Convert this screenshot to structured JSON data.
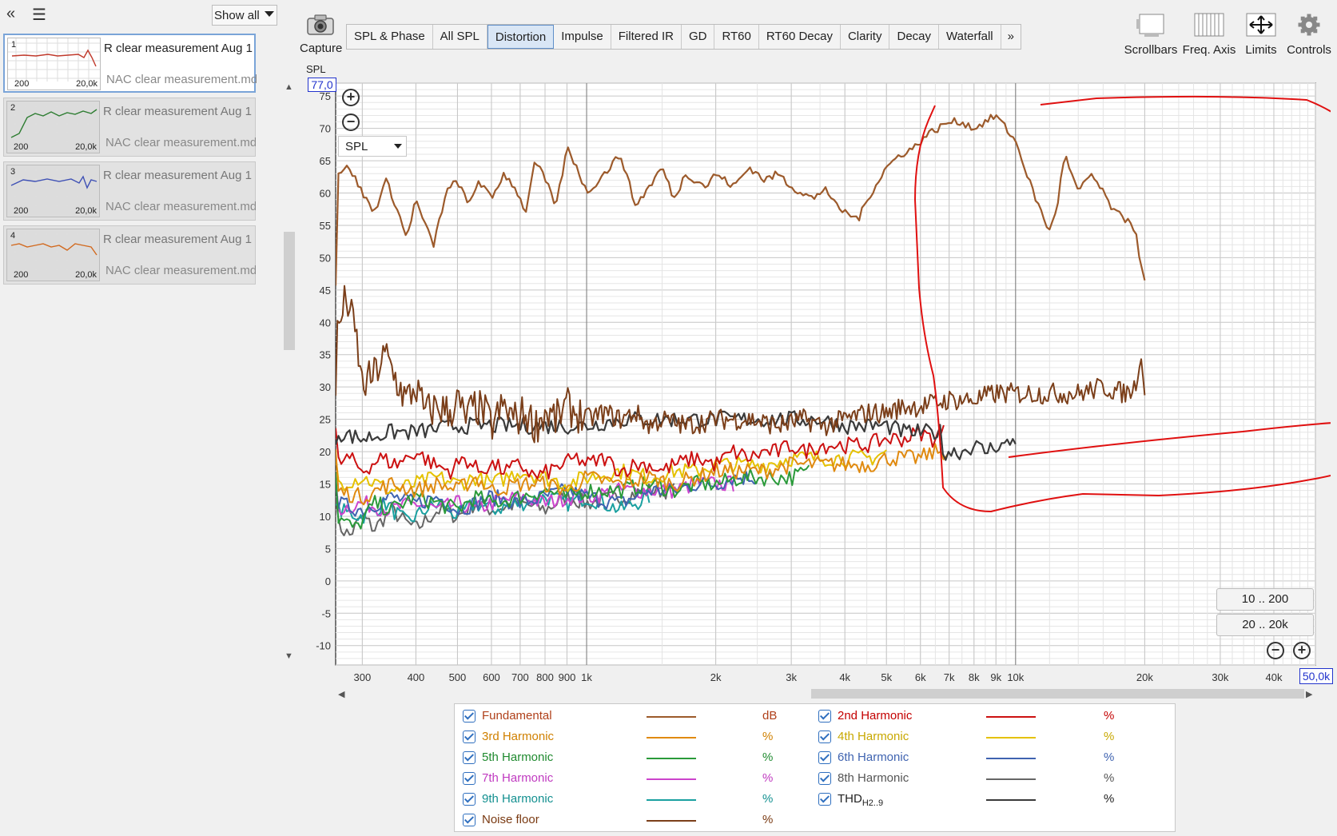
{
  "left": {
    "collapse_icon": "double-chevron-left-icon",
    "menu_icon": "hamburger-menu-icon",
    "show_all": "Show all",
    "measurements": [
      {
        "num": "1",
        "name": "R clear measurement Aug 1",
        "file": "NAC clear measurement.mdat",
        "lo": "200",
        "hi": "20,0k",
        "color": "#c0392b",
        "selected": true
      },
      {
        "num": "2",
        "name": "R clear measurement Aug 1",
        "file": "NAC clear measurement.mdat",
        "lo": "200",
        "hi": "20,0k",
        "color": "#2e7d32",
        "selected": false
      },
      {
        "num": "3",
        "name": "R clear measurement Aug 1",
        "file": "NAC clear measurement.mdat",
        "lo": "200",
        "hi": "20,0k",
        "color": "#3f51b5",
        "selected": false
      },
      {
        "num": "4",
        "name": "R clear measurement Aug 1",
        "file": "NAC clear measurement.mdat",
        "lo": "200",
        "hi": "20,0k",
        "color": "#d2691e",
        "selected": false
      }
    ]
  },
  "toolbar": {
    "capture": "Capture",
    "tabs": [
      "SPL & Phase",
      "All SPL",
      "Distortion",
      "Impulse",
      "Filtered IR",
      "GD",
      "RT60",
      "RT60 Decay",
      "Clarity",
      "Decay",
      "Waterfall"
    ],
    "active_tab": "Distortion",
    "more_icon": "double-chevron-right-icon",
    "right": [
      {
        "label": "Scrollbars",
        "icon": "scrollbars-icon"
      },
      {
        "label": "Freq. Axis",
        "icon": "freq-axis-icon"
      },
      {
        "label": "Limits",
        "icon": "limits-icon"
      },
      {
        "label": "Controls",
        "icon": "gear-icon"
      }
    ]
  },
  "plot": {
    "ylabel": "SPL",
    "ytop_box": "77,0",
    "xright_box": "50,0k",
    "select": "SPL",
    "range_buttons": [
      "10 .. 200",
      "20 .. 20k"
    ]
  },
  "chart_data": {
    "type": "line",
    "xscale": "log",
    "xlim": [
      260,
      50000
    ],
    "ylim": [
      -13,
      77
    ],
    "yticks": [
      75,
      70,
      65,
      60,
      55,
      50,
      45,
      40,
      35,
      30,
      25,
      20,
      15,
      10,
      5,
      0,
      -5,
      -10
    ],
    "ytick_labels": [
      "75",
      "70",
      "65",
      "60",
      "55",
      "50",
      "45",
      "40",
      "35",
      "30",
      "25",
      "20",
      "15",
      "10",
      "5",
      "0",
      "-5",
      "-10"
    ],
    "xticks": [
      300,
      400,
      500,
      600,
      700,
      800,
      900,
      1000,
      2000,
      3000,
      4000,
      5000,
      6000,
      7000,
      8000,
      9000,
      10000,
      20000,
      30000,
      40000
    ],
    "xtick_labels": [
      "300",
      "400",
      "500",
      "600",
      "700",
      "800",
      "900",
      "1k",
      "2k",
      "3k",
      "4k",
      "5k",
      "6k",
      "7k",
      "8k",
      "9k",
      "10k",
      "20k",
      "30k",
      "40k"
    ],
    "series": [
      {
        "name": "Fundamental",
        "unit": "dB",
        "color": "#9c5a2b",
        "width": 2.2,
        "x": [
          260,
          280,
          300,
          320,
          340,
          360,
          380,
          400,
          420,
          440,
          470,
          500,
          530,
          560,
          600,
          640,
          680,
          720,
          760,
          800,
          850,
          900,
          950,
          1000,
          1100,
          1200,
          1300,
          1400,
          1500,
          1600,
          1700,
          1800,
          1900,
          2000,
          2200,
          2400,
          2600,
          2800,
          3000,
          3200,
          3400,
          3600,
          3800,
          4000,
          4300,
          4600,
          5000,
          5400,
          5800,
          6200,
          6600,
          7000,
          7500,
          8000,
          8500,
          9000,
          9500,
          10000,
          10500,
          11000,
          12000,
          12500,
          13000,
          14000,
          15000,
          16000,
          17000,
          18000,
          18500,
          19000,
          19500,
          20000
        ],
        "y": [
          63,
          64,
          60,
          57,
          62,
          58,
          53,
          59,
          55,
          52,
          60,
          62,
          58,
          62,
          59,
          63,
          61,
          57,
          65,
          62,
          58,
          67,
          64,
          60,
          63,
          66,
          58,
          61,
          64,
          59,
          63,
          62,
          61,
          63,
          61,
          64,
          62,
          63,
          61,
          60,
          59,
          61,
          58,
          57,
          56,
          60,
          64,
          66,
          67,
          69,
          70,
          71,
          71,
          70,
          71,
          72,
          70,
          68,
          64,
          60,
          54,
          58,
          66,
          60,
          63,
          60,
          57,
          56,
          56,
          54,
          50,
          46
        ]
      },
      {
        "name": "Noise floor",
        "unit": "%",
        "color": "#7b3f1a",
        "width": 2,
        "x": [
          260,
          275,
          290,
          300,
          320,
          340,
          360,
          380,
          400,
          420,
          450,
          480,
          500,
          520,
          550,
          580,
          600,
          640,
          680,
          720,
          760,
          800,
          850,
          900,
          1000,
          1100,
          1200,
          1300,
          1400,
          1500,
          1700,
          2000,
          2400,
          2800,
          3200,
          3600,
          4000,
          4500,
          5000,
          5500,
          6000,
          7000,
          8000,
          9000,
          10000,
          11000,
          12000,
          14000,
          16000,
          18000,
          19000,
          19500,
          20000
        ],
        "y": [
          37,
          44,
          38,
          30,
          32,
          35,
          31,
          28,
          30,
          26,
          27,
          26,
          28,
          25,
          27,
          26,
          24,
          27,
          25,
          26,
          24,
          26,
          25,
          27,
          25,
          26,
          25,
          26,
          24,
          25,
          24,
          25,
          25,
          24,
          25,
          24,
          25,
          26,
          26,
          27,
          27,
          28,
          28,
          29,
          29,
          29,
          29,
          29,
          30,
          29,
          30,
          35,
          30
        ],
        "jitter": 3
      },
      {
        "name": "2nd Harmonic",
        "unit": "%",
        "color": "#cc1111",
        "width": 2,
        "x": [
          260,
          280,
          300,
          330,
          360,
          400,
          440,
          480,
          520,
          560,
          600,
          650,
          700,
          760,
          820,
          880,
          950,
          1000,
          1100,
          1200,
          1300,
          1400,
          1500,
          1600,
          1800,
          2000,
          2200,
          2400,
          2600,
          2800,
          3000,
          3200,
          3500,
          3800,
          4100,
          4500,
          5000,
          5500,
          6000,
          6400,
          6800
        ],
        "y": [
          18,
          19,
          17,
          19,
          18,
          20,
          18,
          17,
          19,
          17,
          18,
          17,
          18,
          16,
          17,
          18,
          19,
          18,
          19,
          17,
          18,
          18,
          17,
          18,
          19,
          18,
          20,
          19,
          20,
          20,
          21,
          20,
          21,
          21,
          21,
          21,
          22,
          22,
          23,
          22,
          23
        ]
      },
      {
        "name": "3rd Harmonic",
        "unit": "%",
        "color": "#e08a10",
        "width": 2,
        "x": [
          260,
          300,
          350,
          400,
          450,
          500,
          550,
          600,
          700,
          800,
          900,
          1000,
          1200,
          1400,
          1600,
          1800,
          2000,
          2300,
          2600,
          3000,
          3400,
          3800,
          4200,
          4600,
          5000,
          5500,
          6000,
          6500,
          7000
        ],
        "y": [
          14,
          13,
          15,
          14,
          15,
          14,
          16,
          14,
          15,
          15,
          14,
          16,
          15,
          16,
          15,
          16,
          17,
          17,
          17,
          18,
          18,
          18,
          18,
          18,
          19,
          19,
          19,
          20,
          20
        ]
      },
      {
        "name": "4th Harmonic",
        "unit": "%",
        "color": "#e5c100",
        "width": 2,
        "x": [
          260,
          300,
          350,
          400,
          450,
          500,
          550,
          600,
          700,
          800,
          900,
          1000,
          1200,
          1400,
          1600,
          1800,
          2000,
          2300,
          2600,
          3000,
          3400,
          3800,
          4200,
          4600,
          5000
        ],
        "y": [
          15,
          16,
          14,
          15,
          16,
          15,
          16,
          15,
          17,
          16,
          15,
          16,
          17,
          16,
          17,
          17,
          18,
          18,
          18,
          19,
          19,
          19,
          19,
          19,
          20
        ]
      },
      {
        "name": "5th Harmonic",
        "unit": "%",
        "color": "#2a9a3a",
        "width": 2,
        "x": [
          260,
          290,
          320,
          350,
          400,
          450,
          500,
          550,
          600,
          700,
          800,
          900,
          1000,
          1200,
          1400,
          1600,
          1800,
          2000,
          2300,
          2600,
          3000,
          3300
        ],
        "y": [
          10,
          8,
          12,
          11,
          13,
          12,
          11,
          13,
          12,
          13,
          14,
          13,
          14,
          14,
          15,
          14,
          15,
          15,
          16,
          16,
          16,
          17
        ]
      },
      {
        "name": "6th Harmonic",
        "unit": "%",
        "color": "#3f63b0",
        "width": 2,
        "x": [
          260,
          300,
          350,
          400,
          450,
          500,
          550,
          600,
          700,
          800,
          900,
          1000,
          1200,
          1400,
          1600,
          1800,
          2000,
          2200,
          2500
        ],
        "y": [
          12,
          11,
          13,
          12,
          13,
          11,
          12,
          13,
          12,
          13,
          14,
          13,
          12,
          14,
          14,
          15,
          15,
          16,
          16
        ]
      },
      {
        "name": "7th Harmonic",
        "unit": "%",
        "color": "#cc44cc",
        "width": 2,
        "x": [
          260,
          300,
          350,
          400,
          450,
          500,
          550,
          600,
          700,
          800,
          900,
          1000,
          1200,
          1400,
          1600,
          1800,
          2000,
          2200
        ],
        "y": [
          11,
          12,
          11,
          12,
          11,
          12,
          11,
          12,
          13,
          12,
          13,
          13,
          14,
          14,
          14,
          15,
          15,
          15
        ]
      },
      {
        "name": "8th Harmonic",
        "unit": "%",
        "color": "#666666",
        "width": 2,
        "x": [
          260,
          280,
          300,
          320,
          350,
          380,
          400,
          450,
          500,
          550,
          600,
          700,
          800,
          900,
          1000,
          1200,
          1400,
          1600
        ],
        "y": [
          9,
          7,
          10,
          8,
          11,
          9,
          8,
          11,
          10,
          12,
          11,
          12,
          11,
          13,
          12,
          13,
          14,
          14
        ]
      },
      {
        "name": "9th Harmonic",
        "unit": "%",
        "color": "#1aa0a0",
        "width": 2,
        "x": [
          260,
          300,
          340,
          380,
          420,
          460,
          500,
          550,
          600,
          700,
          800,
          900,
          1000,
          1100,
          1200,
          1400
        ],
        "y": [
          11,
          10,
          12,
          9,
          11,
          12,
          10,
          12,
          11,
          12,
          13,
          12,
          13,
          12,
          11,
          13
        ]
      },
      {
        "name": "THD",
        "name_sub": "H2..9",
        "unit": "%",
        "color": "#3a3a3a",
        "width": 2.2,
        "x": [
          260,
          300,
          350,
          400,
          500,
          600,
          800,
          1000,
          1200,
          1500,
          2000,
          2500,
          3000,
          3500,
          4000,
          4500,
          5000,
          5500,
          6000,
          6500,
          6700,
          6750,
          7000,
          7500,
          8000,
          8500,
          9000,
          9500,
          10000
        ],
        "y": [
          23,
          22,
          23,
          23,
          24,
          24,
          24,
          24,
          25,
          25,
          25,
          25,
          25,
          25,
          24,
          24,
          24,
          23,
          23,
          23,
          23,
          20,
          20,
          20,
          21,
          20,
          21,
          21,
          22
        ]
      }
    ]
  },
  "legend": [
    {
      "label": "Fundamental",
      "unit": "dB",
      "color": "#9c5a2b",
      "text_color": "#b0401a"
    },
    {
      "label": "2nd Harmonic",
      "unit": "%",
      "color": "#cc1111",
      "text_color": "#c40000"
    },
    {
      "label": "3rd Harmonic",
      "unit": "%",
      "color": "#e08a10",
      "text_color": "#d08000"
    },
    {
      "label": "4th Harmonic",
      "unit": "%",
      "color": "#e5c100",
      "text_color": "#c8a800"
    },
    {
      "label": "5th Harmonic",
      "unit": "%",
      "color": "#2a9a3a",
      "text_color": "#1f8a2f"
    },
    {
      "label": "6th Harmonic",
      "unit": "%",
      "color": "#3f63b0",
      "text_color": "#3f63b0"
    },
    {
      "label": "7th Harmonic",
      "unit": "%",
      "color": "#cc44cc",
      "text_color": "#c03ac0"
    },
    {
      "label": "8th Harmonic",
      "unit": "%",
      "color": "#666666",
      "text_color": "#555555"
    },
    {
      "label": "9th Harmonic",
      "unit": "%",
      "color": "#1aa0a0",
      "text_color": "#139090"
    },
    {
      "label": "THD",
      "label_sub": "H2..9",
      "unit": "%",
      "color": "#3a3a3a",
      "text_color": "#222222"
    },
    {
      "label": "Noise floor",
      "unit": "%",
      "color": "#7b3f1a",
      "text_color": "#7a3a12"
    }
  ]
}
